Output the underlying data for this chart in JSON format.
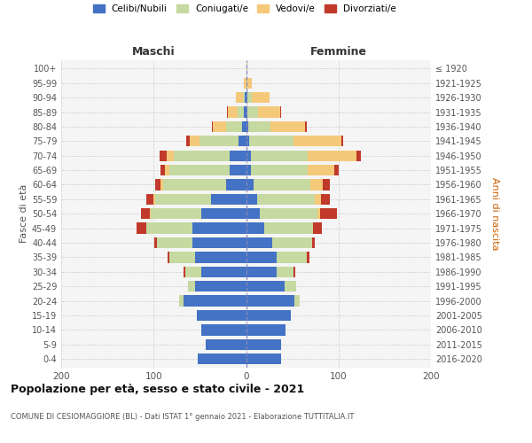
{
  "age_groups": [
    "0-4",
    "5-9",
    "10-14",
    "15-19",
    "20-24",
    "25-29",
    "30-34",
    "35-39",
    "40-44",
    "45-49",
    "50-54",
    "55-59",
    "60-64",
    "65-69",
    "70-74",
    "75-79",
    "80-84",
    "85-89",
    "90-94",
    "95-99",
    "100+"
  ],
  "birth_years": [
    "2016-2020",
    "2011-2015",
    "2006-2010",
    "2001-2005",
    "1996-2000",
    "1991-1995",
    "1986-1990",
    "1981-1985",
    "1976-1980",
    "1971-1975",
    "1966-1970",
    "1961-1965",
    "1956-1960",
    "1951-1955",
    "1946-1950",
    "1941-1945",
    "1936-1940",
    "1931-1935",
    "1926-1930",
    "1921-1925",
    "≤ 1920"
  ],
  "colors": {
    "celibi": "#4472c4",
    "coniugati": "#c5d9a0",
    "vedovi": "#f5c97a",
    "divorziati": "#c0392b"
  },
  "maschi": {
    "celibi": [
      52,
      44,
      48,
      53,
      68,
      55,
      48,
      55,
      58,
      58,
      48,
      38,
      22,
      18,
      18,
      8,
      4,
      2,
      1,
      0,
      0
    ],
    "coniugati": [
      0,
      0,
      0,
      0,
      4,
      8,
      18,
      28,
      38,
      50,
      55,
      60,
      68,
      65,
      60,
      42,
      18,
      7,
      2,
      0,
      0
    ],
    "vedovi": [
      0,
      0,
      0,
      0,
      0,
      0,
      0,
      0,
      0,
      0,
      1,
      2,
      3,
      5,
      8,
      11,
      14,
      11,
      8,
      2,
      0
    ],
    "divorziati": [
      0,
      0,
      0,
      0,
      0,
      0,
      2,
      2,
      3,
      10,
      10,
      8,
      5,
      5,
      8,
      4,
      1,
      1,
      0,
      0,
      0
    ]
  },
  "femmine": {
    "celibi": [
      38,
      38,
      43,
      48,
      52,
      42,
      33,
      33,
      28,
      20,
      15,
      12,
      8,
      5,
      5,
      3,
      2,
      1,
      1,
      0,
      0
    ],
    "coniugati": [
      0,
      0,
      0,
      0,
      6,
      12,
      18,
      33,
      43,
      52,
      62,
      62,
      62,
      62,
      62,
      48,
      24,
      12,
      5,
      1,
      0
    ],
    "vedovi": [
      0,
      0,
      0,
      0,
      0,
      0,
      0,
      0,
      0,
      0,
      3,
      7,
      13,
      28,
      52,
      52,
      38,
      24,
      19,
      5,
      1
    ],
    "divorziati": [
      0,
      0,
      0,
      0,
      0,
      0,
      2,
      3,
      3,
      10,
      18,
      10,
      8,
      5,
      5,
      2,
      2,
      1,
      0,
      0,
      0
    ]
  },
  "title": "Popolazione per età, sesso e stato civile - 2021",
  "subtitle": "COMUNE DI CESIOMAGGIORE (BL) - Dati ISTAT 1° gennaio 2021 - Elaborazione TUTTITALIA.IT",
  "xlabel_left": "Maschi",
  "xlabel_right": "Femmine",
  "ylabel_left": "Fasce di età",
  "ylabel_right": "Anni di nascita",
  "xlim": 200,
  "legend_labels": [
    "Celibi/Nubili",
    "Coniugati/e",
    "Vedovi/e",
    "Divorziati/e"
  ],
  "bg_color": "#f5f5f5",
  "grid_color": "#cccccc",
  "bar_height": 0.75
}
